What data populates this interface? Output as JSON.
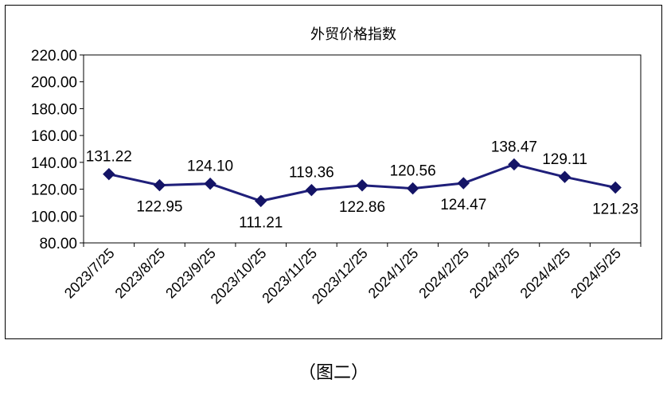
{
  "caption": "（图二）",
  "chart_data": {
    "type": "line",
    "title": "外贸价格指数",
    "xlabel": "",
    "ylabel": "",
    "categories": [
      "2023/7/25",
      "2023/8/25",
      "2023/9/25",
      "2023/10/25",
      "2023/11/25",
      "2023/12/25",
      "2024/1/25",
      "2024/2/25",
      "2024/3/25",
      "2024/4/25",
      "2024/5/25"
    ],
    "series": [
      {
        "values": [
          131.22,
          122.95,
          124.1,
          111.21,
          119.36,
          122.86,
          120.56,
          124.47,
          138.47,
          129.11,
          121.23
        ],
        "labels": [
          "131.22",
          "122.95",
          "124.10",
          "111.21",
          "119.36",
          "122.86",
          "120.56",
          "124.47",
          "138.47",
          "129.11",
          "121.23"
        ],
        "label_positions": [
          "above",
          "below",
          "above",
          "below",
          "above",
          "below",
          "above",
          "below",
          "above",
          "above",
          "below"
        ]
      }
    ],
    "ylim": [
      80,
      220
    ],
    "ytick_step": 20,
    "ytick_labels": [
      "80.00",
      "100.00",
      "120.00",
      "140.00",
      "160.00",
      "180.00",
      "200.00",
      "220.00"
    ],
    "grid": false,
    "legend": "none",
    "colors": {
      "line": "#1f1f7a",
      "marker": "#141466",
      "axis": "#000000",
      "text": "#000000"
    }
  }
}
